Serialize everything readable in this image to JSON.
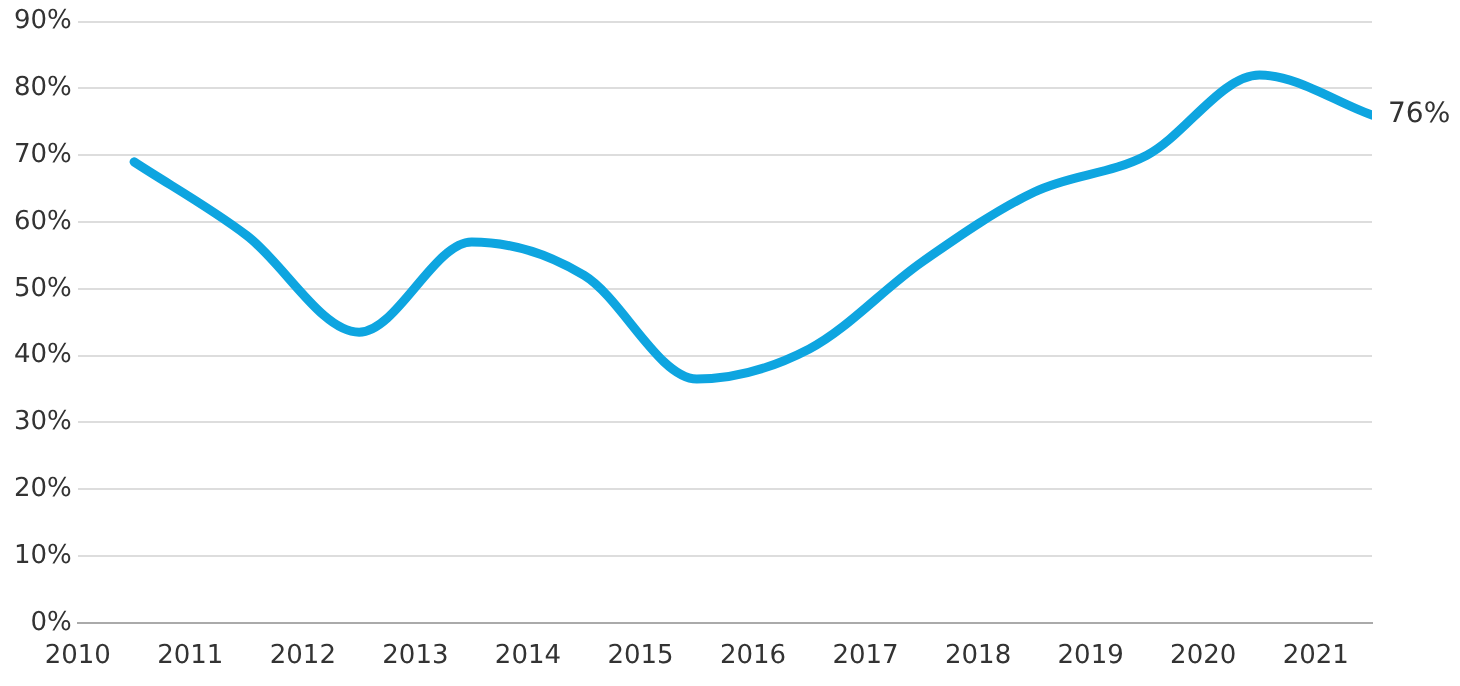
{
  "chart_data": {
    "type": "line",
    "x": [
      2010.5,
      2011.5,
      2012.5,
      2013.5,
      2014.5,
      2015.5,
      2016.5,
      2017.5,
      2018.5,
      2019.5,
      2020.5,
      2021.5
    ],
    "series": [
      {
        "color": "#0ea5e0",
        "values": [
          69,
          58,
          43.5,
          57,
          52,
          36.5,
          41,
          54,
          64.5,
          70,
          82,
          76
        ]
      }
    ],
    "xlim": [
      2010,
      2021.5
    ],
    "xticks": [
      2010,
      2011,
      2012,
      2013,
      2014,
      2015,
      2016,
      2017,
      2018,
      2019,
      2020,
      2021
    ],
    "ylim": [
      0,
      90
    ],
    "yticks": [
      {
        "value": 0,
        "label": "0%"
      },
      {
        "value": 10,
        "label": "10%"
      },
      {
        "value": 20,
        "label": "20%"
      },
      {
        "value": 30,
        "label": "30%"
      },
      {
        "value": 40,
        "label": "40%"
      },
      {
        "value": 50,
        "label": "50%"
      },
      {
        "value": 60,
        "label": "60%"
      },
      {
        "value": 70,
        "label": "70%"
      },
      {
        "value": 80,
        "label": "80%"
      },
      {
        "value": 90,
        "label": "90%"
      }
    ],
    "grid": "y",
    "legend": false,
    "marker": "none",
    "line_style": "solid",
    "annotations": [
      {
        "text": "76%",
        "x": 2021.5,
        "y": 76
      }
    ]
  }
}
